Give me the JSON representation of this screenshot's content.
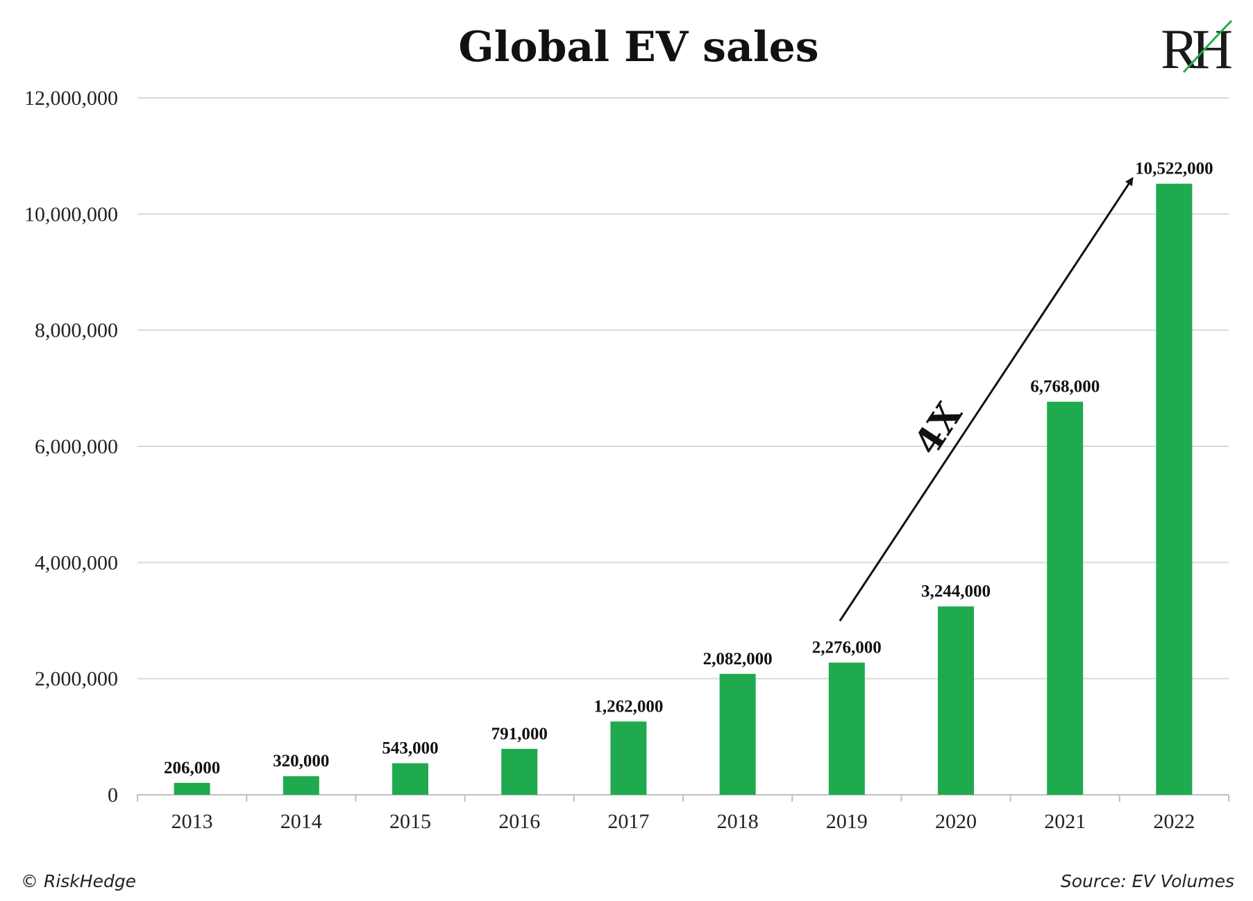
{
  "chart_data": {
    "type": "bar",
    "title": "Global EV sales",
    "xlabel": "",
    "ylabel": "",
    "categories": [
      "2013",
      "2014",
      "2015",
      "2016",
      "2017",
      "2018",
      "2019",
      "2020",
      "2021",
      "2022"
    ],
    "values": [
      206000,
      320000,
      543000,
      791000,
      1262000,
      2082000,
      2276000,
      3244000,
      6768000,
      10522000
    ],
    "value_labels": [
      "206,000",
      "320,000",
      "543,000",
      "791,000",
      "1,262,000",
      "2,082,000",
      "2,276,000",
      "3,244,000",
      "6,768,000",
      "10,522,000"
    ],
    "ylim": [
      0,
      12000000
    ],
    "yticks": [
      0,
      2000000,
      4000000,
      6000000,
      8000000,
      10000000,
      12000000
    ],
    "ytick_labels": [
      "0",
      "2,000,000",
      "4,000,000",
      "6,000,000",
      "8,000,000",
      "10,000,000",
      "12,000,000"
    ],
    "grid": true,
    "bar_color": "#1faa4f",
    "annotation": {
      "text": "4X",
      "from_category": "2019",
      "to_category": "2022"
    }
  },
  "logo": {
    "text": "RH",
    "accent_color": "#1faa4f"
  },
  "footer": {
    "copyright": "© RiskHedge",
    "source": "Source: EV Volumes"
  }
}
